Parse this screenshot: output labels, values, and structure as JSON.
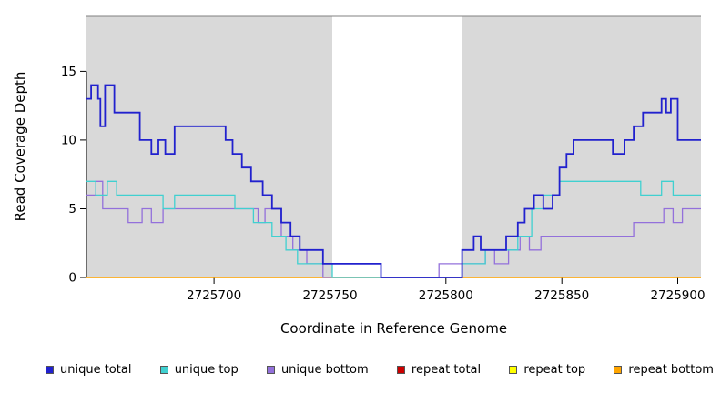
{
  "chart_data": {
    "type": "line",
    "step": true,
    "xlabel": "Coordinate in Reference Genome",
    "ylabel": "Read Coverage Depth",
    "xlim": [
      2725645,
      2725910
    ],
    "ylim": [
      0,
      19
    ],
    "x_end": 2725910,
    "x_ticks": [
      2725700,
      2725750,
      2725800,
      2725850,
      2725900
    ],
    "y_ticks": [
      0,
      5,
      10,
      15
    ],
    "grid": false,
    "shade_color": "#d9d9d9",
    "shaded_regions": [
      [
        2725645,
        2725751
      ],
      [
        2725807,
        2725910
      ]
    ],
    "gap_region": [
      2725751,
      2725807
    ],
    "series": [
      {
        "name": "repeat total",
        "color": "#CC0000",
        "width": 1.3,
        "points": [
          [
            2725645,
            0
          ]
        ]
      },
      {
        "name": "repeat top",
        "color": "#FFFF00",
        "width": 1.3,
        "points": [
          [
            2725645,
            0
          ]
        ]
      },
      {
        "name": "repeat bottom",
        "color": "#FFA500",
        "width": 1.3,
        "points": [
          [
            2725645,
            0
          ]
        ]
      },
      {
        "name": "unique bottom",
        "color": "#9370DB",
        "width": 1.3,
        "points": [
          [
            2725645,
            6
          ],
          [
            2725649,
            7
          ],
          [
            2725652,
            5
          ],
          [
            2725663,
            4
          ],
          [
            2725669,
            5
          ],
          [
            2725673,
            4
          ],
          [
            2725678,
            5
          ],
          [
            2725719,
            4
          ],
          [
            2725722,
            5
          ],
          [
            2725729,
            3
          ],
          [
            2725734,
            2
          ],
          [
            2725740,
            1
          ],
          [
            2725747,
            0
          ],
          [
            2725797,
            1
          ],
          [
            2725817,
            2
          ],
          [
            2725821,
            1
          ],
          [
            2725827,
            2
          ],
          [
            2725832,
            3
          ],
          [
            2725836,
            2
          ],
          [
            2725841,
            3
          ],
          [
            2725881,
            4
          ],
          [
            2725894,
            5
          ],
          [
            2725898,
            4
          ],
          [
            2725902,
            5
          ]
        ]
      },
      {
        "name": "unique top",
        "color": "#40D0D0",
        "width": 1.3,
        "points": [
          [
            2725645,
            7
          ],
          [
            2725649,
            6
          ],
          [
            2725654,
            7
          ],
          [
            2725658,
            6
          ],
          [
            2725678,
            5
          ],
          [
            2725683,
            6
          ],
          [
            2725709,
            5
          ],
          [
            2725717,
            4
          ],
          [
            2725725,
            3
          ],
          [
            2725731,
            2
          ],
          [
            2725736,
            1
          ],
          [
            2725751,
            0
          ],
          [
            2725807,
            1
          ],
          [
            2725817,
            2
          ],
          [
            2725831,
            3
          ],
          [
            2725837,
            5
          ],
          [
            2725842,
            6
          ],
          [
            2725849,
            7
          ],
          [
            2725884,
            6
          ],
          [
            2725893,
            7
          ],
          [
            2725898,
            6
          ]
        ]
      },
      {
        "name": "unique total",
        "color": "#2121CE",
        "width": 1.8,
        "points": [
          [
            2725645,
            13
          ],
          [
            2725647,
            14
          ],
          [
            2725650,
            13
          ],
          [
            2725651,
            11
          ],
          [
            2725653,
            14
          ],
          [
            2725657,
            12
          ],
          [
            2725668,
            10
          ],
          [
            2725673,
            9
          ],
          [
            2725676,
            10
          ],
          [
            2725679,
            9
          ],
          [
            2725683,
            11
          ],
          [
            2725705,
            10
          ],
          [
            2725708,
            9
          ],
          [
            2725712,
            8
          ],
          [
            2725716,
            7
          ],
          [
            2725721,
            6
          ],
          [
            2725725,
            5
          ],
          [
            2725729,
            4
          ],
          [
            2725733,
            3
          ],
          [
            2725737,
            2
          ],
          [
            2725747,
            1
          ],
          [
            2725772,
            0
          ],
          [
            2725807,
            2
          ],
          [
            2725812,
            3
          ],
          [
            2725815,
            2
          ],
          [
            2725826,
            3
          ],
          [
            2725831,
            4
          ],
          [
            2725834,
            5
          ],
          [
            2725838,
            6
          ],
          [
            2725842,
            5
          ],
          [
            2725846,
            6
          ],
          [
            2725849,
            8
          ],
          [
            2725852,
            9
          ],
          [
            2725855,
            10
          ],
          [
            2725872,
            9
          ],
          [
            2725877,
            10
          ],
          [
            2725881,
            11
          ],
          [
            2725885,
            12
          ],
          [
            2725893,
            13
          ],
          [
            2725895,
            12
          ],
          [
            2725897,
            13
          ],
          [
            2725900,
            10
          ]
        ]
      }
    ]
  },
  "legend": {
    "items": [
      {
        "label": "unique total",
        "color": "#2121CE"
      },
      {
        "label": "unique top",
        "color": "#40D0D0"
      },
      {
        "label": "unique bottom",
        "color": "#9370DB"
      },
      {
        "label": "repeat total",
        "color": "#CC0000"
      },
      {
        "label": "repeat top",
        "color": "#FFFF00"
      },
      {
        "label": "repeat bottom",
        "color": "#FFA500"
      }
    ]
  }
}
